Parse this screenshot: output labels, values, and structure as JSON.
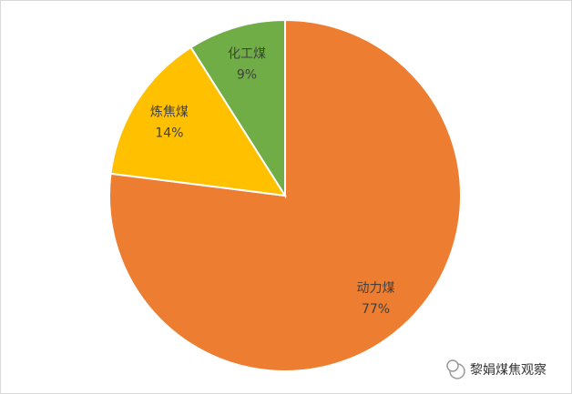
{
  "chart_data": {
    "type": "pie",
    "categories": [
      "动力煤",
      "炼焦煤",
      "化工煤"
    ],
    "values": [
      77,
      14,
      9
    ],
    "value_labels": [
      "77%",
      "14%",
      "9%"
    ],
    "colors": [
      "#ed7d31",
      "#ffc000",
      "#70ad47"
    ]
  },
  "watermark": "黎娟煤焦观察"
}
